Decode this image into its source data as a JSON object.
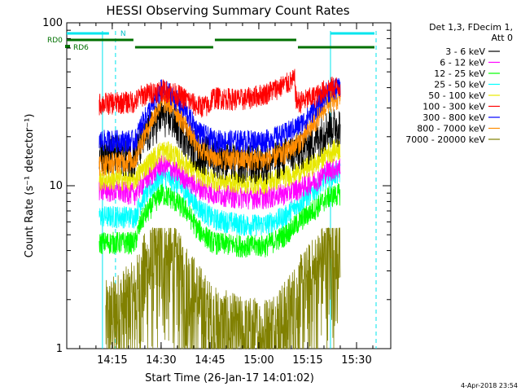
{
  "chart_data": {
    "type": "line",
    "title": "HESSI Observing Summary Count Rates",
    "xlabel": "Start Time (26-Jan-17 14:01:02)",
    "ylabel": "Count Rate (s⁻¹ detector⁻¹)",
    "y_scale": "log",
    "ylim": [
      1,
      100
    ],
    "xlim": [
      "14:01:02",
      "15:40:30"
    ],
    "x_ticks": [
      "14:15",
      "14:30",
      "14:45",
      "15:00",
      "15:15",
      "15:30"
    ],
    "y_ticks": [
      "1",
      "10",
      "100"
    ],
    "legend_title": [
      "Det 1,3, FDecim 1,",
      "Att 0"
    ],
    "legend_position": "right",
    "series": [
      {
        "name": "3 - 6 keV",
        "color": "#000000",
        "points": [
          [
            "14:11:00",
            16.5
          ],
          [
            "14:22:00",
            15.5
          ],
          [
            "14:24:00",
            18.5
          ],
          [
            "14:30:00",
            27.5
          ],
          [
            "14:33:00",
            26.5
          ],
          [
            "14:38:00",
            20.0
          ],
          [
            "14:41:00",
            16.5
          ],
          [
            "14:46:00",
            15.5
          ],
          [
            "14:55:00",
            14.0
          ],
          [
            "15:02:00",
            14.0
          ],
          [
            "15:08:00",
            15.5
          ],
          [
            "15:13:00",
            17.0
          ],
          [
            "15:18:00",
            20.0
          ],
          [
            "15:21:00",
            23.0
          ],
          [
            "15:25:00",
            24.0
          ]
        ]
      },
      {
        "name": "6 - 12 keV",
        "color": "#ff00ff",
        "points": [
          [
            "14:11:00",
            9.5
          ],
          [
            "14:22:00",
            9.0
          ],
          [
            "14:24:00",
            10.2
          ],
          [
            "14:30:00",
            13.5
          ],
          [
            "14:33:00",
            12.8
          ],
          [
            "14:38:00",
            11.0
          ],
          [
            "14:41:00",
            9.8
          ],
          [
            "14:46:00",
            9.0
          ],
          [
            "14:55:00",
            8.5
          ],
          [
            "15:02:00",
            8.5
          ],
          [
            "15:08:00",
            9.0
          ],
          [
            "15:13:00",
            9.8
          ],
          [
            "15:18:00",
            11.0
          ],
          [
            "15:21:00",
            12.5
          ],
          [
            "15:25:00",
            13.0
          ]
        ]
      },
      {
        "name": "12 - 25 keV",
        "color": "#00ff00",
        "points": [
          [
            "14:11:00",
            4.5
          ],
          [
            "14:22:00",
            4.5
          ],
          [
            "14:24:00",
            6.2
          ],
          [
            "14:30:00",
            9.0
          ],
          [
            "14:33:00",
            8.5
          ],
          [
            "14:38:00",
            7.0
          ],
          [
            "14:41:00",
            5.5
          ],
          [
            "14:46:00",
            4.5
          ],
          [
            "14:55:00",
            4.3
          ],
          [
            "15:02:00",
            4.3
          ],
          [
            "15:08:00",
            5.0
          ],
          [
            "15:13:00",
            6.2
          ],
          [
            "15:18:00",
            7.5
          ],
          [
            "15:21:00",
            8.5
          ],
          [
            "15:25:00",
            9.0
          ]
        ]
      },
      {
        "name": "25 - 50 keV",
        "color": "#00ffff",
        "points": [
          [
            "14:11:00",
            6.5
          ],
          [
            "14:22:00",
            6.5
          ],
          [
            "14:24:00",
            8.2
          ],
          [
            "14:30:00",
            11.5
          ],
          [
            "14:33:00",
            11.0
          ],
          [
            "14:38:00",
            9.0
          ],
          [
            "14:41:00",
            7.5
          ],
          [
            "14:46:00",
            6.3
          ],
          [
            "14:55:00",
            5.8
          ],
          [
            "15:02:00",
            5.8
          ],
          [
            "15:08:00",
            6.5
          ],
          [
            "15:13:00",
            8.0
          ],
          [
            "15:18:00",
            9.8
          ],
          [
            "15:21:00",
            11.5
          ],
          [
            "15:25:00",
            12.0
          ]
        ]
      },
      {
        "name": "50 - 100 keV",
        "color": "#e8e800",
        "points": [
          [
            "14:11:00",
            11.0
          ],
          [
            "14:22:00",
            11.0
          ],
          [
            "14:24:00",
            12.5
          ],
          [
            "14:30:00",
            16.5
          ],
          [
            "14:33:00",
            16.0
          ],
          [
            "14:38:00",
            13.5
          ],
          [
            "14:41:00",
            12.0
          ],
          [
            "14:46:00",
            11.0
          ],
          [
            "14:55:00",
            10.5
          ],
          [
            "15:02:00",
            10.5
          ],
          [
            "15:08:00",
            11.5
          ],
          [
            "15:13:00",
            12.5
          ],
          [
            "15:18:00",
            14.0
          ],
          [
            "15:21:00",
            16.0
          ],
          [
            "15:25:00",
            17.0
          ]
        ]
      },
      {
        "name": "100 - 300 keV",
        "color": "#ff0000",
        "points": [
          [
            "14:11:00",
            32.0
          ],
          [
            "14:22:00",
            33.0
          ],
          [
            "14:24:00",
            36.0
          ],
          [
            "14:30:00",
            39.0
          ],
          [
            "14:33:00",
            38.0
          ],
          [
            "14:38:00",
            34.0
          ],
          [
            "14:41:00",
            31.0
          ],
          [
            "14:45:00",
            31.0
          ],
          [
            "14:45:30",
            35.0
          ],
          [
            "14:55:00",
            34.0
          ],
          [
            "15:02:00",
            37.0
          ],
          [
            "15:08:00",
            42.0
          ],
          [
            "15:11:00",
            45.0
          ],
          [
            "15:11:30",
            33.0
          ],
          [
            "15:13:00",
            33.0
          ],
          [
            "15:18:00",
            36.0
          ],
          [
            "15:21:00",
            40.0
          ],
          [
            "15:25:00",
            41.0
          ]
        ]
      },
      {
        "name": "300 - 800 keV",
        "color": "#0000ff",
        "points": [
          [
            "14:11:00",
            19.0
          ],
          [
            "14:22:00",
            19.0
          ],
          [
            "14:24:00",
            24.0
          ],
          [
            "14:30:00",
            39.0
          ],
          [
            "14:33:00",
            37.0
          ],
          [
            "14:38:00",
            28.0
          ],
          [
            "14:41:00",
            22.0
          ],
          [
            "14:46:00",
            19.0
          ],
          [
            "14:55:00",
            19.0
          ],
          [
            "15:02:00",
            19.0
          ],
          [
            "15:08:00",
            21.0
          ],
          [
            "15:13:00",
            24.0
          ],
          [
            "15:18:00",
            31.0
          ],
          [
            "15:21:00",
            38.0
          ],
          [
            "15:25:00",
            40.0
          ]
        ]
      },
      {
        "name": "800 - 7000 keV",
        "color": "#ff8c00",
        "points": [
          [
            "14:11:00",
            13.5
          ],
          [
            "14:22:00",
            14.5
          ],
          [
            "14:24:00",
            19.0
          ],
          [
            "14:30:00",
            33.0
          ],
          [
            "14:33:00",
            32.0
          ],
          [
            "14:38:00",
            23.0
          ],
          [
            "14:41:00",
            17.5
          ],
          [
            "14:46:00",
            15.0
          ],
          [
            "14:55:00",
            14.5
          ],
          [
            "15:02:00",
            14.5
          ],
          [
            "15:08:00",
            16.0
          ],
          [
            "15:13:00",
            19.0
          ],
          [
            "15:18:00",
            26.0
          ],
          [
            "15:21:00",
            32.0
          ],
          [
            "15:25:00",
            35.0
          ]
        ]
      },
      {
        "name": "7000 - 20000 keV",
        "color": "#808000",
        "points": [
          [
            "14:13:00",
            1.5
          ],
          [
            "14:22:00",
            2.0
          ],
          [
            "14:25:00",
            3.0
          ],
          [
            "14:30:00",
            3.7
          ],
          [
            "14:33:00",
            3.5
          ],
          [
            "14:38:00",
            2.5
          ],
          [
            "14:41:00",
            2.0
          ],
          [
            "14:46:00",
            1.4
          ],
          [
            "14:55:00",
            1.2
          ],
          [
            "15:02:00",
            1.2
          ],
          [
            "15:08:00",
            1.5
          ],
          [
            "15:13:00",
            2.2
          ],
          [
            "15:18:00",
            3.0
          ],
          [
            "15:21:00",
            3.8
          ],
          [
            "15:25:00",
            4.0
          ]
        ]
      }
    ],
    "state_bars": [
      {
        "label": "N",
        "color": "#00e5ee",
        "segments": [
          [
            "14:01:02",
            "14:14:00"
          ],
          [
            "15:22:00",
            "15:35:30"
          ]
        ]
      },
      {
        "label": "RD0",
        "color": "#007000",
        "segments": [
          [
            "14:01:02",
            "14:21:30"
          ],
          [
            "14:46:30",
            "15:11:30"
          ]
        ]
      },
      {
        "label": "RD6",
        "color": "#007000",
        "segments": [
          [
            "14:22:00",
            "14:46:00"
          ],
          [
            "15:12:00",
            "15:35:30"
          ]
        ]
      }
    ],
    "vlines": [
      {
        "time": "14:12:00",
        "style": "solid",
        "color": "#00e5ee"
      },
      {
        "time": "14:16:00",
        "style": "dashed",
        "color": "#00e5ee"
      },
      {
        "time": "15:22:00",
        "style": "solid",
        "color": "#00e5ee"
      },
      {
        "time": "15:36:00",
        "style": "dashed",
        "color": "#00e5ee"
      }
    ],
    "timestamp": "4-Apr-2018 23:54"
  }
}
